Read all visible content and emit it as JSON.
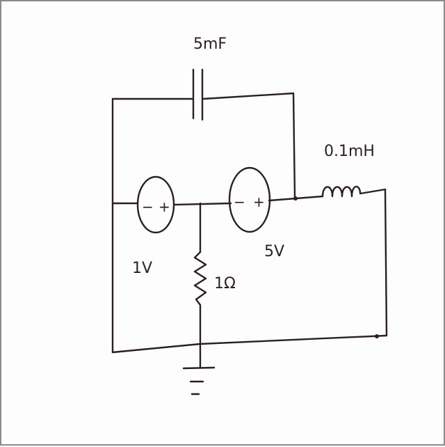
{
  "diagram": {
    "capacitor_label": "5mF",
    "inductor_label": "0.1mH",
    "source_left_label": "1V",
    "source_right_label": "5V",
    "resistor_label": "1Ω",
    "source_polarity_minus": "−",
    "source_polarity_plus": "+"
  }
}
